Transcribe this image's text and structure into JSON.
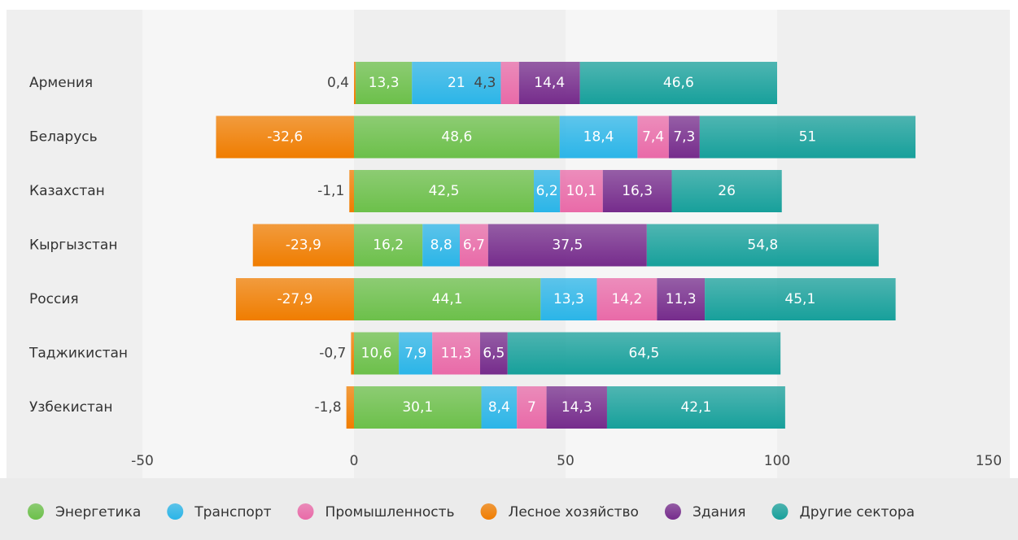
{
  "chart_data": {
    "type": "bar",
    "orientation": "horizontal",
    "stacked": true,
    "categories": [
      "Армения",
      "Беларусь",
      "Казахстан",
      "Кыргызстан",
      "Россия",
      "Таджикистан",
      "Узбекистан"
    ],
    "series": [
      {
        "name": "Энергетика",
        "color": "#6cc04a",
        "values": [
          13.3,
          48.6,
          42.5,
          16.2,
          44.1,
          10.6,
          30.1
        ],
        "value_labels": [
          "13,3",
          "48,6",
          "42,5",
          "16,2",
          "44,1",
          "10,6",
          "30,1"
        ]
      },
      {
        "name": "Транспорт",
        "color": "#2bb5e8",
        "values": [
          21,
          18.4,
          6.2,
          8.8,
          13.3,
          7.9,
          8.4
        ],
        "value_labels": [
          "21",
          "18,4",
          "6,2",
          "8,8",
          "13,3",
          "7,9",
          "8,4"
        ]
      },
      {
        "name": "Промышленность",
        "color": "#e96aa8",
        "values": [
          4.3,
          7.4,
          10.1,
          6.7,
          14.2,
          11.3,
          7
        ],
        "value_labels": [
          "4,3",
          "7,4",
          "10,1",
          "6,7",
          "14,2",
          "11,3",
          "7"
        ]
      },
      {
        "name": "Лесное хозяйство",
        "color": "#f07d00",
        "values": [
          0.4,
          -32.6,
          -1.1,
          -23.9,
          -27.9,
          -0.7,
          -1.8
        ],
        "value_labels": [
          "0,4",
          "-32,6",
          "-1,1",
          "-23,9",
          "-27,9",
          "-0,7",
          "-1,8"
        ]
      },
      {
        "name": "Здания",
        "color": "#762c8c",
        "values": [
          14.4,
          7.3,
          16.3,
          37.5,
          11.3,
          6.5,
          14.3
        ],
        "value_labels": [
          "14,4",
          "7,3",
          "16,3",
          "37,5",
          "11,3",
          "6,5",
          "14,3"
        ]
      },
      {
        "name": "Другие сектора",
        "color": "#17a09b",
        "values": [
          46.6,
          51,
          26,
          54.8,
          45.1,
          64.5,
          42.1
        ],
        "value_labels": [
          "46,6",
          "51",
          "26",
          "54,8",
          "45,1",
          "64,5",
          "42,1"
        ]
      }
    ],
    "xlim": [
      -50,
      150
    ],
    "xticks": [
      -50,
      0,
      50,
      100,
      150
    ],
    "legend": "bottom"
  }
}
